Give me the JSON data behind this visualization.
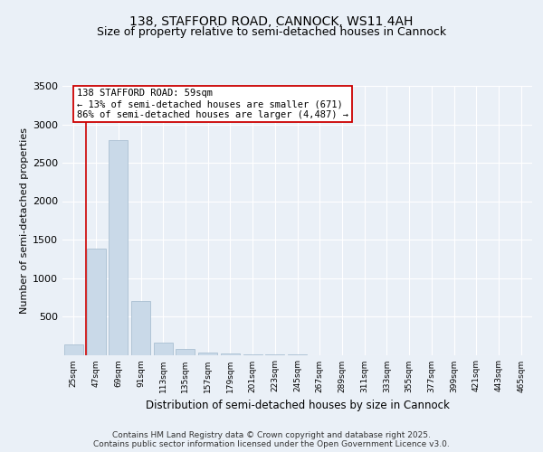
{
  "title_line1": "138, STAFFORD ROAD, CANNOCK, WS11 4AH",
  "title_line2": "Size of property relative to semi-detached houses in Cannock",
  "xlabel": "Distribution of semi-detached houses by size in Cannock",
  "ylabel": "Number of semi-detached properties",
  "bin_labels": [
    "25sqm",
    "47sqm",
    "69sqm",
    "91sqm",
    "113sqm",
    "135sqm",
    "157sqm",
    "179sqm",
    "201sqm",
    "223sqm",
    "245sqm",
    "267sqm",
    "289sqm",
    "311sqm",
    "333sqm",
    "355sqm",
    "377sqm",
    "399sqm",
    "421sqm",
    "443sqm",
    "465sqm"
  ],
  "bar_heights": [
    130,
    1380,
    2800,
    700,
    160,
    80,
    35,
    15,
    5,
    2,
    1,
    0,
    0,
    0,
    0,
    0,
    0,
    0,
    0,
    0,
    0
  ],
  "bar_color": "#c9d9e8",
  "bar_edge_color": "#a0b8cc",
  "property_bin_index": 1,
  "red_line_color": "#cc0000",
  "annotation_text": "138 STAFFORD ROAD: 59sqm\n← 13% of semi-detached houses are smaller (671)\n86% of semi-detached houses are larger (4,487) →",
  "annotation_box_color": "#ffffff",
  "annotation_border_color": "#cc0000",
  "ylim": [
    0,
    3500
  ],
  "yticks": [
    0,
    500,
    1000,
    1500,
    2000,
    2500,
    3000,
    3500
  ],
  "background_color": "#eaf0f7",
  "plot_bg_color": "#eaf0f7",
  "footer_text": "Contains HM Land Registry data © Crown copyright and database right 2025.\nContains public sector information licensed under the Open Government Licence v3.0.",
  "title_fontsize": 10,
  "subtitle_fontsize": 9,
  "annotation_fontsize": 7.5,
  "footer_fontsize": 6.5
}
